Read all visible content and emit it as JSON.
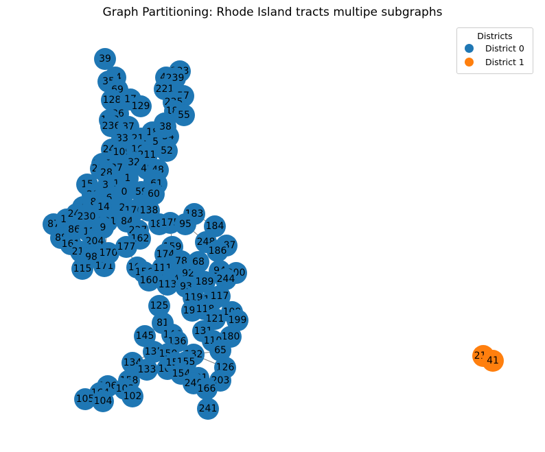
{
  "title": "Graph Partitioning: Rhode Island tracts multipe subgraphs",
  "legend": {
    "title": "Districts",
    "items": [
      {
        "label": "District 0",
        "color": "#1f77b4"
      },
      {
        "label": "District 1",
        "color": "#ff7f0e"
      }
    ]
  },
  "nodes": [
    {
      "id": "39",
      "d": 0
    },
    {
      "id": "74",
      "d": 0
    },
    {
      "id": "35",
      "d": 0
    },
    {
      "id": "69",
      "d": 0
    },
    {
      "id": "128",
      "d": 0
    },
    {
      "id": "17",
      "d": 0
    },
    {
      "id": "129",
      "d": 0
    },
    {
      "id": "36",
      "d": 0
    },
    {
      "id": "198",
      "d": 0
    },
    {
      "id": "236",
      "d": 0
    },
    {
      "id": "37",
      "d": 0
    },
    {
      "id": "33",
      "d": 0
    },
    {
      "id": "212",
      "d": 0
    },
    {
      "id": "18",
      "d": 0
    },
    {
      "id": "50",
      "d": 0
    },
    {
      "id": "54",
      "d": 0
    },
    {
      "id": "52",
      "d": 0
    },
    {
      "id": "241",
      "d": 0
    },
    {
      "id": "109",
      "d": 0
    },
    {
      "id": "16",
      "d": 0
    },
    {
      "id": "211",
      "d": 0
    },
    {
      "id": "32",
      "d": 0
    },
    {
      "id": "49",
      "d": 0
    },
    {
      "id": "48",
      "d": 0
    },
    {
      "id": "205",
      "d": 0
    },
    {
      "id": "218",
      "d": 0
    },
    {
      "id": "27",
      "d": 0
    },
    {
      "id": "28",
      "d": 0
    },
    {
      "id": "51",
      "d": 0
    },
    {
      "id": "61",
      "d": 0
    },
    {
      "id": "15",
      "d": 0
    },
    {
      "id": "30",
      "d": 0
    },
    {
      "id": "10",
      "d": 0
    },
    {
      "id": "1",
      "d": 0
    },
    {
      "id": "59",
      "d": 0
    },
    {
      "id": "60",
      "d": 0
    },
    {
      "id": "20",
      "d": 0
    },
    {
      "id": "29",
      "d": 0
    },
    {
      "id": "6",
      "d": 0
    },
    {
      "id": "0",
      "d": 0
    },
    {
      "id": "4",
      "d": 0
    },
    {
      "id": "8",
      "d": 0
    },
    {
      "id": "14",
      "d": 0
    },
    {
      "id": "2",
      "d": 0
    },
    {
      "id": "176",
      "d": 0
    },
    {
      "id": "138",
      "d": 0
    },
    {
      "id": "87",
      "d": 0
    },
    {
      "id": "19",
      "d": 0
    },
    {
      "id": "242",
      "d": 0
    },
    {
      "id": "230",
      "d": 0
    },
    {
      "id": "201",
      "d": 0
    },
    {
      "id": "84",
      "d": 0
    },
    {
      "id": "182",
      "d": 0
    },
    {
      "id": "175",
      "d": 0
    },
    {
      "id": "88",
      "d": 0
    },
    {
      "id": "86",
      "d": 0
    },
    {
      "id": "12",
      "d": 0
    },
    {
      "id": "9",
      "d": 0
    },
    {
      "id": "227",
      "d": 0
    },
    {
      "id": "161",
      "d": 0
    },
    {
      "id": "204",
      "d": 0
    },
    {
      "id": "162",
      "d": 0
    },
    {
      "id": "216",
      "d": 0
    },
    {
      "id": "98",
      "d": 0
    },
    {
      "id": "171",
      "d": 0
    },
    {
      "id": "115",
      "d": 0
    },
    {
      "id": "170",
      "d": 0
    },
    {
      "id": "177",
      "d": 0
    },
    {
      "id": "159",
      "d": 0
    },
    {
      "id": "174",
      "d": 0
    },
    {
      "id": "165",
      "d": 0
    },
    {
      "id": "156",
      "d": 0
    },
    {
      "id": "111",
      "d": 0
    },
    {
      "id": "160",
      "d": 0
    },
    {
      "id": "194",
      "d": 0
    },
    {
      "id": "78",
      "d": 0
    },
    {
      "id": "113",
      "d": 0
    },
    {
      "id": "92",
      "d": 0
    },
    {
      "id": "68",
      "d": 0
    },
    {
      "id": "183",
      "d": 0
    },
    {
      "id": "184",
      "d": 0
    },
    {
      "id": "95",
      "d": 0
    },
    {
      "id": "248",
      "d": 0
    },
    {
      "id": "187",
      "d": 0
    },
    {
      "id": "186",
      "d": 0
    },
    {
      "id": "94",
      "d": 0
    },
    {
      "id": "200",
      "d": 0
    },
    {
      "id": "244",
      "d": 0
    },
    {
      "id": "189",
      "d": 0
    },
    {
      "id": "93",
      "d": 0
    },
    {
      "id": "119",
      "d": 0
    },
    {
      "id": "190",
      "d": 0
    },
    {
      "id": "117",
      "d": 0
    },
    {
      "id": "191",
      "d": 0
    },
    {
      "id": "118",
      "d": 0
    },
    {
      "id": "125",
      "d": 0
    },
    {
      "id": "109b",
      "label": "109",
      "d": 0
    },
    {
      "id": "199",
      "d": 0
    },
    {
      "id": "121",
      "d": 0
    },
    {
      "id": "81",
      "d": 0
    },
    {
      "id": "145",
      "d": 0
    },
    {
      "id": "131",
      "d": 0
    },
    {
      "id": "180",
      "d": 0
    },
    {
      "id": "146",
      "d": 0
    },
    {
      "id": "136",
      "d": 0
    },
    {
      "id": "110",
      "d": 0
    },
    {
      "id": "65",
      "d": 0
    },
    {
      "id": "135",
      "d": 0
    },
    {
      "id": "150",
      "d": 0
    },
    {
      "id": "132",
      "d": 0
    },
    {
      "id": "134",
      "d": 0
    },
    {
      "id": "133",
      "d": 0
    },
    {
      "id": "107",
      "d": 0
    },
    {
      "id": "151",
      "d": 0
    },
    {
      "id": "155",
      "d": 0
    },
    {
      "id": "126",
      "d": 0
    },
    {
      "id": "158",
      "d": 0
    },
    {
      "id": "154",
      "d": 0
    },
    {
      "id": "203",
      "d": 0
    },
    {
      "id": "201b",
      "label": "201",
      "d": 0
    },
    {
      "id": "106",
      "d": 0
    },
    {
      "id": "103",
      "d": 0
    },
    {
      "id": "164",
      "d": 0
    },
    {
      "id": "102",
      "d": 0
    },
    {
      "id": "105",
      "d": 0
    },
    {
      "id": "104",
      "d": 0
    },
    {
      "id": "240",
      "d": 0
    },
    {
      "id": "166",
      "d": 0
    },
    {
      "id": "241b",
      "label": "241",
      "d": 0
    },
    {
      "id": "233",
      "d": 0
    },
    {
      "id": "42",
      "d": 0
    },
    {
      "id": "239",
      "d": 0
    },
    {
      "id": "221",
      "d": 0
    },
    {
      "id": "57",
      "d": 0
    },
    {
      "id": "235",
      "d": 0
    },
    {
      "id": "188",
      "d": 0
    },
    {
      "id": "55",
      "d": 0
    },
    {
      "id": "41b",
      "label": "41",
      "d": 0
    },
    {
      "id": "38",
      "d": 0
    },
    {
      "id": "219",
      "d": 1
    },
    {
      "id": "41",
      "d": 1
    }
  ],
  "edges": [
    [
      "39",
      "74"
    ],
    [
      "74",
      "35"
    ],
    [
      "35",
      "69"
    ],
    [
      "69",
      "128"
    ],
    [
      "128",
      "17"
    ],
    [
      "17",
      "129"
    ],
    [
      "129",
      "36"
    ],
    [
      "36",
      "198"
    ],
    [
      "198",
      "236"
    ],
    [
      "236",
      "37"
    ],
    [
      "37",
      "33"
    ],
    [
      "33",
      "212"
    ],
    [
      "212",
      "18"
    ],
    [
      "18",
      "50"
    ],
    [
      "50",
      "54"
    ],
    [
      "54",
      "52"
    ],
    [
      "33",
      "241"
    ],
    [
      "241",
      "109"
    ],
    [
      "109",
      "16"
    ],
    [
      "16",
      "211"
    ],
    [
      "211",
      "32"
    ],
    [
      "32",
      "49"
    ],
    [
      "49",
      "48"
    ],
    [
      "109",
      "205"
    ],
    [
      "205",
      "218"
    ],
    [
      "218",
      "27"
    ],
    [
      "27",
      "28"
    ],
    [
      "48",
      "51"
    ],
    [
      "51",
      "61"
    ],
    [
      "28",
      "15"
    ],
    [
      "15",
      "30"
    ],
    [
      "30",
      "10"
    ],
    [
      "10",
      "1"
    ],
    [
      "1",
      "59"
    ],
    [
      "59",
      "60"
    ],
    [
      "30",
      "20"
    ],
    [
      "20",
      "29"
    ],
    [
      "29",
      "6"
    ],
    [
      "6",
      "0"
    ],
    [
      "20",
      "4"
    ],
    [
      "4",
      "8"
    ],
    [
      "8",
      "14"
    ],
    [
      "14",
      "2"
    ],
    [
      "2",
      "176"
    ],
    [
      "176",
      "138"
    ],
    [
      "4",
      "87"
    ],
    [
      "87",
      "19"
    ],
    [
      "19",
      "242"
    ],
    [
      "242",
      "230"
    ],
    [
      "230",
      "201"
    ],
    [
      "201",
      "84"
    ],
    [
      "138",
      "182"
    ],
    [
      "182",
      "175"
    ],
    [
      "19",
      "88"
    ],
    [
      "88",
      "86"
    ],
    [
      "86",
      "12"
    ],
    [
      "12",
      "9"
    ],
    [
      "84",
      "227"
    ],
    [
      "88",
      "161"
    ],
    [
      "161",
      "204"
    ],
    [
      "227",
      "162"
    ],
    [
      "204",
      "216"
    ],
    [
      "161",
      "98"
    ],
    [
      "98",
      "171"
    ],
    [
      "98",
      "115"
    ],
    [
      "171",
      "170"
    ],
    [
      "170",
      "177"
    ],
    [
      "175",
      "159"
    ],
    [
      "159",
      "174"
    ],
    [
      "177",
      "165"
    ],
    [
      "165",
      "156"
    ],
    [
      "174",
      "111"
    ],
    [
      "156",
      "160"
    ],
    [
      "160",
      "194"
    ],
    [
      "174",
      "78"
    ],
    [
      "194",
      "113"
    ],
    [
      "78",
      "92"
    ],
    [
      "92",
      "68"
    ],
    [
      "175",
      "183"
    ],
    [
      "183",
      "184"
    ],
    [
      "183",
      "95"
    ],
    [
      "95",
      "248"
    ],
    [
      "248",
      "187"
    ],
    [
      "187",
      "186"
    ],
    [
      "186",
      "94"
    ],
    [
      "94",
      "200"
    ],
    [
      "94",
      "244"
    ],
    [
      "244",
      "189"
    ],
    [
      "189",
      "93"
    ],
    [
      "93",
      "119"
    ],
    [
      "119",
      "190"
    ],
    [
      "190",
      "117"
    ],
    [
      "119",
      "191"
    ],
    [
      "191",
      "118"
    ],
    [
      "113",
      "125"
    ],
    [
      "118",
      "109b"
    ],
    [
      "109b",
      "199"
    ],
    [
      "118",
      "121"
    ],
    [
      "125",
      "81"
    ],
    [
      "81",
      "145"
    ],
    [
      "121",
      "131"
    ],
    [
      "131",
      "180"
    ],
    [
      "81",
      "146"
    ],
    [
      "146",
      "136"
    ],
    [
      "131",
      "110"
    ],
    [
      "110",
      "65"
    ],
    [
      "145",
      "135"
    ],
    [
      "136",
      "150"
    ],
    [
      "65",
      "132"
    ],
    [
      "135",
      "134"
    ],
    [
      "134",
      "133"
    ],
    [
      "150",
      "107"
    ],
    [
      "107",
      "151"
    ],
    [
      "151",
      "155"
    ],
    [
      "132",
      "126"
    ],
    [
      "133",
      "158"
    ],
    [
      "155",
      "154"
    ],
    [
      "126",
      "203"
    ],
    [
      "154",
      "201b"
    ],
    [
      "158",
      "106"
    ],
    [
      "158",
      "103"
    ],
    [
      "106",
      "164"
    ],
    [
      "103",
      "102"
    ],
    [
      "164",
      "105"
    ],
    [
      "164",
      "104"
    ],
    [
      "201b",
      "240"
    ],
    [
      "240",
      "166"
    ],
    [
      "166",
      "241b"
    ],
    [
      "203",
      "166"
    ],
    [
      "233",
      "42"
    ],
    [
      "42",
      "239"
    ],
    [
      "239",
      "221"
    ],
    [
      "221",
      "57"
    ],
    [
      "57",
      "235"
    ],
    [
      "235",
      "188"
    ],
    [
      "188",
      "55"
    ],
    [
      "55",
      "41b"
    ],
    [
      "41b",
      "38"
    ],
    [
      "38",
      "18"
    ],
    [
      "188",
      "38"
    ],
    [
      "0",
      "176"
    ],
    [
      "138",
      "177"
    ],
    [
      "6",
      "171"
    ],
    [
      "111",
      "113"
    ],
    [
      "68",
      "93"
    ],
    [
      "184",
      "248"
    ],
    [
      "93",
      "92"
    ],
    [
      "160",
      "119"
    ],
    [
      "102",
      "134"
    ],
    [
      "219",
      "41"
    ]
  ]
}
